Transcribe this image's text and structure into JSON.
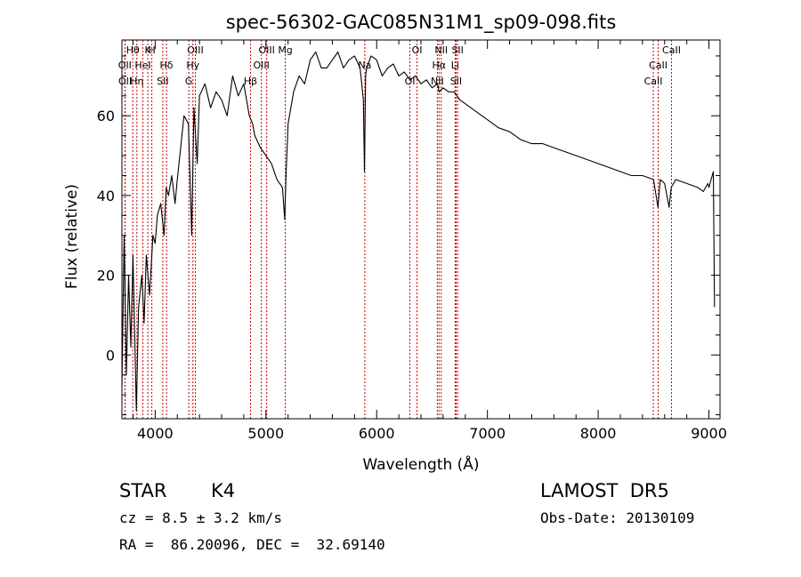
{
  "chart_data": {
    "type": "line",
    "title": "spec-56302-GAC085N31M1_sp09-098.fits",
    "xlabel": "Wavelength (Å)",
    "ylabel": "Flux (relative)",
    "xlim": [
      3700,
      9100
    ],
    "ylim": [
      -16,
      79
    ],
    "xticks": [
      4000,
      5000,
      6000,
      7000,
      8000,
      9000
    ],
    "yticks": [
      0,
      20,
      40,
      60
    ],
    "grid": false,
    "series": [
      {
        "color": "#000000",
        "x": [
          3700,
          3720,
          3740,
          3760,
          3780,
          3800,
          3830,
          3850,
          3880,
          3900,
          3920,
          3950,
          3980,
          4000,
          4020,
          4050,
          4080,
          4100,
          4120,
          4150,
          4180,
          4200,
          4230,
          4260,
          4300,
          4330,
          4350,
          4380,
          4400,
          4450,
          4500,
          4550,
          4600,
          4650,
          4700,
          4750,
          4800,
          4850,
          4880,
          4900,
          4950,
          5000,
          5050,
          5100,
          5150,
          5170,
          5180,
          5200,
          5250,
          5300,
          5350,
          5400,
          5450,
          5500,
          5550,
          5600,
          5650,
          5700,
          5750,
          5800,
          5850,
          5880,
          5890,
          5900,
          5910,
          5950,
          6000,
          6050,
          6100,
          6150,
          6200,
          6250,
          6300,
          6350,
          6400,
          6450,
          6500,
          6550,
          6563,
          6600,
          6650,
          6700,
          6750,
          6800,
          6850,
          6900,
          7000,
          7100,
          7200,
          7300,
          7400,
          7500,
          7600,
          7700,
          7800,
          7900,
          8000,
          8100,
          8200,
          8300,
          8400,
          8500,
          8540,
          8560,
          8600,
          8640,
          8660,
          8700,
          8800,
          8900,
          8950,
          8990,
          9000,
          9020,
          9040,
          9050
        ],
        "values": [
          -8,
          30,
          -5,
          20,
          2,
          25,
          -14,
          12,
          20,
          8,
          25,
          15,
          30,
          28,
          35,
          38,
          30,
          42,
          40,
          45,
          38,
          44,
          52,
          60,
          58,
          30,
          62,
          48,
          65,
          68,
          62,
          66,
          64,
          60,
          70,
          65,
          68,
          60,
          58,
          55,
          52,
          50,
          48,
          44,
          42,
          34,
          44,
          58,
          66,
          70,
          68,
          74,
          76,
          72,
          72,
          74,
          76,
          72,
          74,
          75,
          72,
          64,
          46,
          70,
          72,
          75,
          74,
          70,
          72,
          73,
          70,
          71,
          69,
          70,
          68,
          69,
          67,
          68,
          66,
          67,
          66,
          66,
          64,
          63,
          62,
          61,
          59,
          57,
          56,
          54,
          53,
          53,
          52,
          51,
          50,
          49,
          48,
          47,
          46,
          45,
          45,
          44,
          37,
          44,
          43,
          37,
          42,
          44,
          43,
          42,
          41,
          43,
          42,
          44,
          46,
          12
        ]
      }
    ],
    "lines": [
      {
        "label": "Hθ",
        "x": 3798
      },
      {
        "label": "OII",
        "x": 3727
      },
      {
        "label": "OII",
        "x": 3729
      },
      {
        "label": "K",
        "x": 3934
      },
      {
        "label": "HeI",
        "x": 3889
      },
      {
        "label": "Hη",
        "x": 3835
      },
      {
        "label": "H",
        "x": 3970
      },
      {
        "label": "Hδ",
        "x": 4102
      },
      {
        "label": "SII",
        "x": 4069
      },
      {
        "label": "OIII",
        "x": 4363
      },
      {
        "label": "Hγ",
        "x": 4341
      },
      {
        "label": "G",
        "x": 4304
      },
      {
        "label": "OIII",
        "x": 5007
      },
      {
        "label": "OIII",
        "x": 4959
      },
      {
        "label": "Hβ",
        "x": 4861
      },
      {
        "label": "Mg",
        "x": 5175
      },
      {
        "label": "Na",
        "x": 5893
      },
      {
        "label": "OI",
        "x": 6300
      },
      {
        "label": "OI",
        "x": 6364
      },
      {
        "label": "Hα",
        "x": 6563
      },
      {
        "label": "SII",
        "x": 6717
      },
      {
        "label": "NII",
        "x": 6583
      },
      {
        "label": "Li",
        "x": 6708
      },
      {
        "label": "NII",
        "x": 6548
      },
      {
        "label": "SII",
        "x": 6731
      },
      {
        "label": "CaII",
        "x": 8542
      },
      {
        "label": "CaII",
        "x": 8498
      },
      {
        "label": "CaII",
        "x": 8662
      }
    ]
  },
  "info": {
    "object_class": "STAR",
    "subclass": "K4",
    "survey": "LAMOST  DR5",
    "redshift": "cz = 8.5 ± 3.2 km/s",
    "obs_date": "Obs-Date: 20130109",
    "coords": "RA =  86.20096, DEC =  32.69140"
  },
  "colors": {
    "line_marker": "#cc0000",
    "spectrum": "#000000"
  }
}
